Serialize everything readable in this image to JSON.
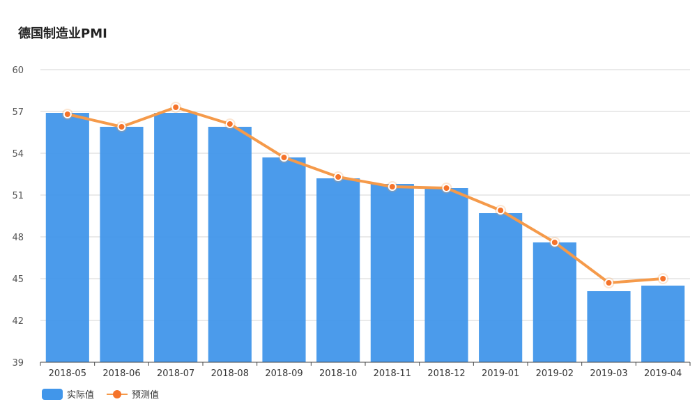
{
  "title": "德国制造业PMI",
  "colors": {
    "bar": "#4196ea",
    "line": "#f59a4a",
    "point": "#f5732a",
    "grid": "#d4d4d4",
    "axis": "#555555",
    "text": "#333333"
  },
  "legend": {
    "bar_label": "实际值",
    "line_label": "预测值"
  },
  "chart_data": {
    "type": "bar",
    "title": "德国制造业PMI",
    "xlabel": "",
    "ylabel": "",
    "ylim": [
      39,
      60
    ],
    "yticks": [
      39,
      42,
      45,
      48,
      51,
      54,
      57,
      60
    ],
    "grid": true,
    "legend_position": "bottom-left",
    "categories": [
      "2018-05",
      "2018-06",
      "2018-07",
      "2018-08",
      "2018-09",
      "2018-10",
      "2018-11",
      "2018-12",
      "2019-01",
      "2019-02",
      "2019-03",
      "2019-04"
    ],
    "series": [
      {
        "name": "实际值",
        "type": "bar",
        "values": [
          56.9,
          55.9,
          56.9,
          55.9,
          53.7,
          52.2,
          51.8,
          51.5,
          49.7,
          47.6,
          44.1,
          44.5
        ]
      },
      {
        "name": "预测值",
        "type": "line",
        "values": [
          56.8,
          55.9,
          57.3,
          56.1,
          53.7,
          52.3,
          51.6,
          51.5,
          49.9,
          47.6,
          44.7,
          45.0
        ]
      }
    ]
  }
}
